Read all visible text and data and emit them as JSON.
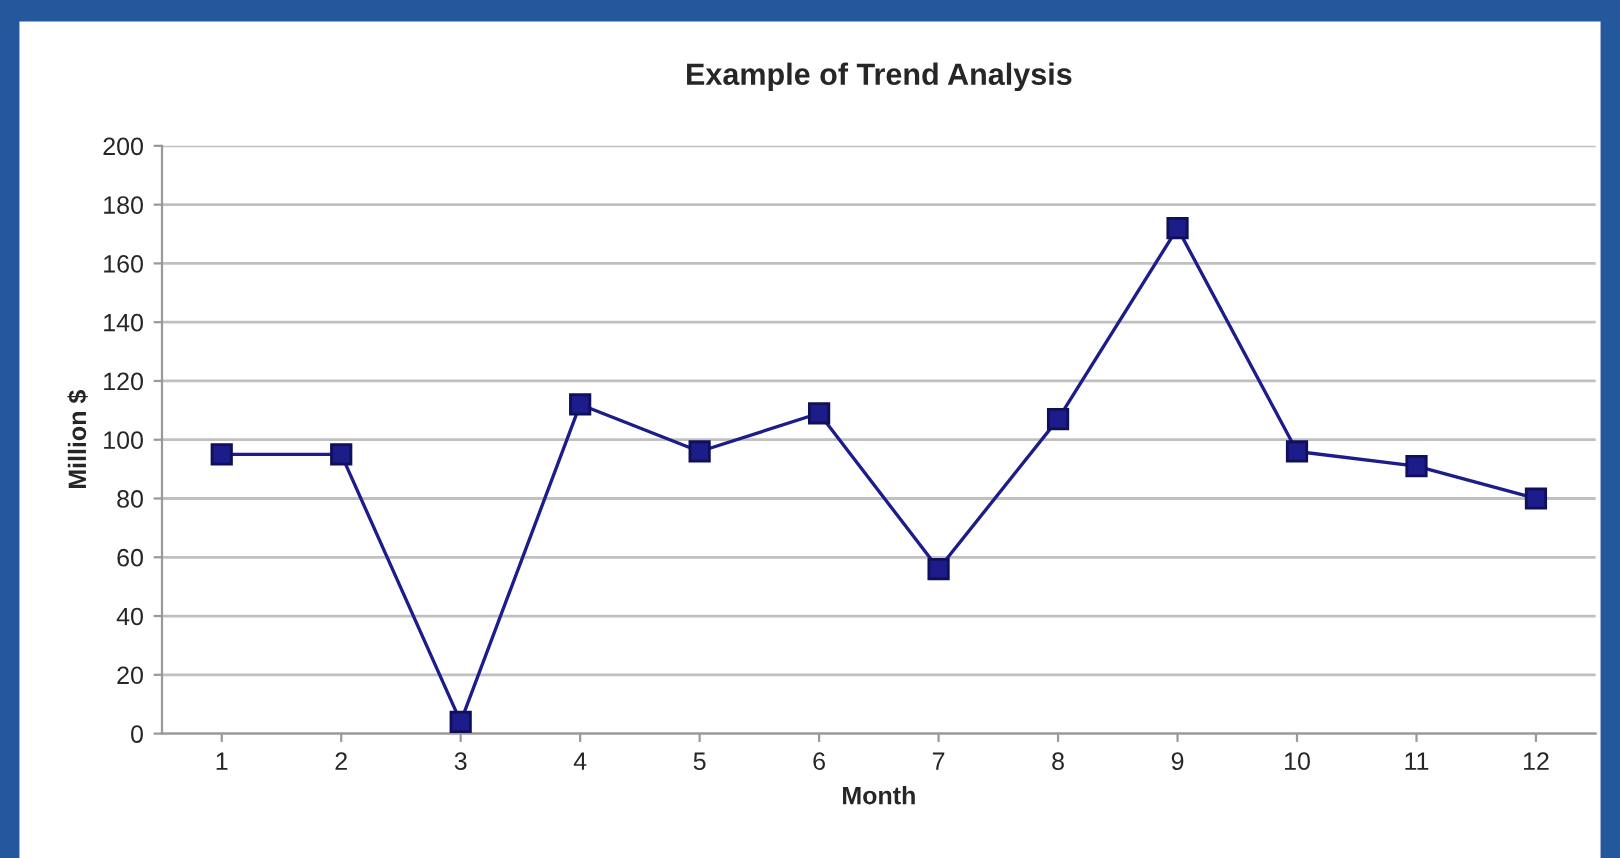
{
  "chart_data": {
    "type": "line",
    "title": "Example of Trend Analysis",
    "xlabel": "Month",
    "ylabel": "Million $",
    "categories": [
      "1",
      "2",
      "3",
      "4",
      "5",
      "6",
      "7",
      "8",
      "9",
      "10",
      "11",
      "12"
    ],
    "series": [
      {
        "color": "#1c1c8a",
        "values": [
          95,
          95,
          4,
          112,
          96,
          109,
          56,
          107,
          172,
          96,
          91,
          80
        ]
      }
    ],
    "ylim": [
      0,
      200
    ],
    "yticks": [
      0,
      20,
      40,
      60,
      80,
      100,
      120,
      140,
      160,
      180,
      200
    ],
    "grid": "y",
    "marker": "square",
    "line_style": "solid",
    "legend": false
  }
}
